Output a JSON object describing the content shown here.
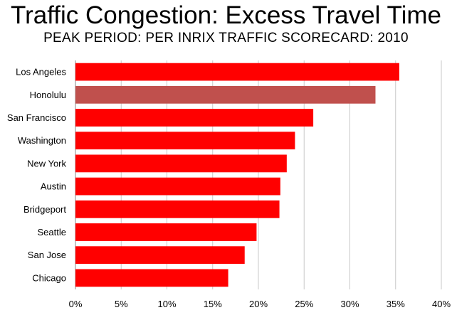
{
  "title": "Traffic Congestion: Excess Travel Time",
  "subtitle": "PEAK PERIOD: PER INRIX TRAFFIC SCORECARD: 2010",
  "chart_data": {
    "type": "bar",
    "orientation": "horizontal",
    "categories": [
      "Los Angeles",
      "Honolulu",
      "San Francisco",
      "Washington",
      "New York",
      "Austin",
      "Bridgeport",
      "Seattle",
      "San Jose",
      "Chicago"
    ],
    "values": [
      35.4,
      32.8,
      26.0,
      24.0,
      23.1,
      22.4,
      22.3,
      19.8,
      18.5,
      16.7
    ],
    "bar_colors": [
      "#ff0000",
      "#c0504d",
      "#ff0000",
      "#ff0000",
      "#ff0000",
      "#ff0000",
      "#ff0000",
      "#ff0000",
      "#ff0000",
      "#ff0000"
    ],
    "xlim": [
      0,
      40
    ],
    "xticks": [
      "0%",
      "5%",
      "10%",
      "15%",
      "20%",
      "25%",
      "30%",
      "35%",
      "40%"
    ],
    "grid": true,
    "legend": "none"
  }
}
